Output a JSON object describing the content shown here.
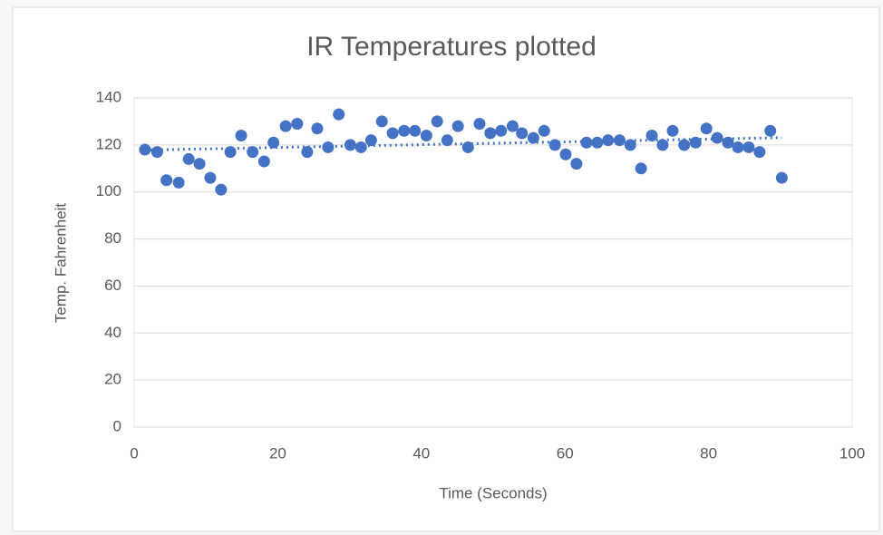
{
  "chart_data": {
    "type": "scatter",
    "title": "IR Temperatures plotted",
    "x_label": "Time (Seconds)",
    "y_label": "Temp. Fahrenheit",
    "series": [
      {
        "name": "IR",
        "color": "#4472c4",
        "x": [
          1.5,
          3.2,
          4.5,
          6.2,
          7.6,
          9.1,
          10.6,
          12.1,
          13.4,
          14.9,
          16.5,
          18.1,
          19.4,
          21.1,
          22.7,
          24.1,
          25.5,
          27.0,
          28.5,
          30.1,
          31.6,
          33.0,
          34.5,
          36.0,
          37.6,
          39.1,
          40.7,
          42.2,
          43.6,
          45.1,
          46.5,
          48.1,
          49.6,
          51.1,
          52.7,
          54.0,
          55.6,
          57.1,
          58.6,
          60.1,
          61.6,
          63.0,
          64.5,
          66.0,
          67.6,
          69.1,
          70.6,
          72.1,
          73.6,
          75.0,
          76.6,
          78.2,
          79.7,
          81.2,
          82.7,
          84.1,
          85.6,
          87.1,
          88.6,
          90.2
        ],
        "values": [
          118,
          117,
          105,
          104,
          114,
          112,
          106,
          101,
          117,
          124,
          117,
          113,
          121,
          128,
          129,
          117,
          127,
          119,
          133,
          120,
          119,
          122,
          130,
          125,
          126,
          126,
          124,
          130,
          122,
          128,
          119,
          129,
          125,
          126,
          128,
          125,
          123,
          126,
          120,
          116,
          112,
          121,
          121,
          122,
          122,
          120,
          110,
          124,
          120,
          126,
          120,
          121,
          127,
          123,
          121,
          119,
          119,
          117,
          126,
          106
        ]
      }
    ],
    "trendline": "linear",
    "xlim": [
      0,
      100
    ],
    "xticks": [
      0,
      20,
      40,
      60,
      80,
      100
    ],
    "ylim": [
      0,
      140
    ],
    "yticks": [
      0,
      20,
      40,
      60,
      80,
      100,
      120,
      140
    ],
    "grid": true
  }
}
